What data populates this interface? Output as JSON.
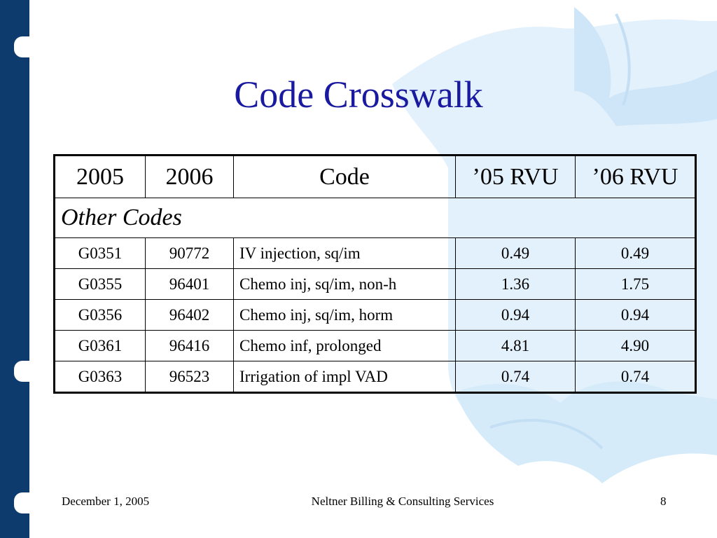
{
  "slide": {
    "title": "Code Crosswalk"
  },
  "table": {
    "headers": [
      "2005",
      "2006",
      "Code",
      "’05 RVU",
      "’06 RVU"
    ],
    "section_label": "Other Codes",
    "rows": [
      [
        "G0351",
        "90772",
        "IV injection, sq/im",
        "0.49",
        "0.49"
      ],
      [
        "G0355",
        "96401",
        "Chemo inj, sq/im, non-h",
        "1.36",
        "1.75"
      ],
      [
        "G0356",
        "96402",
        "Chemo inj, sq/im, horm",
        "0.94",
        "0.94"
      ],
      [
        "G0361",
        "96416",
        "Chemo inf, prolonged",
        "4.81",
        "4.90"
      ],
      [
        "G0363",
        "96523",
        "Irrigation of impl VAD",
        "0.74",
        "0.74"
      ]
    ]
  },
  "footer": {
    "date": "December 1, 2005",
    "company": "Neltner Billing & Consulting Services",
    "page_number": "8"
  },
  "colors": {
    "sidebar": "#0d3b6e",
    "title": "#1a1aa0",
    "background_art": "#dbeefb"
  }
}
